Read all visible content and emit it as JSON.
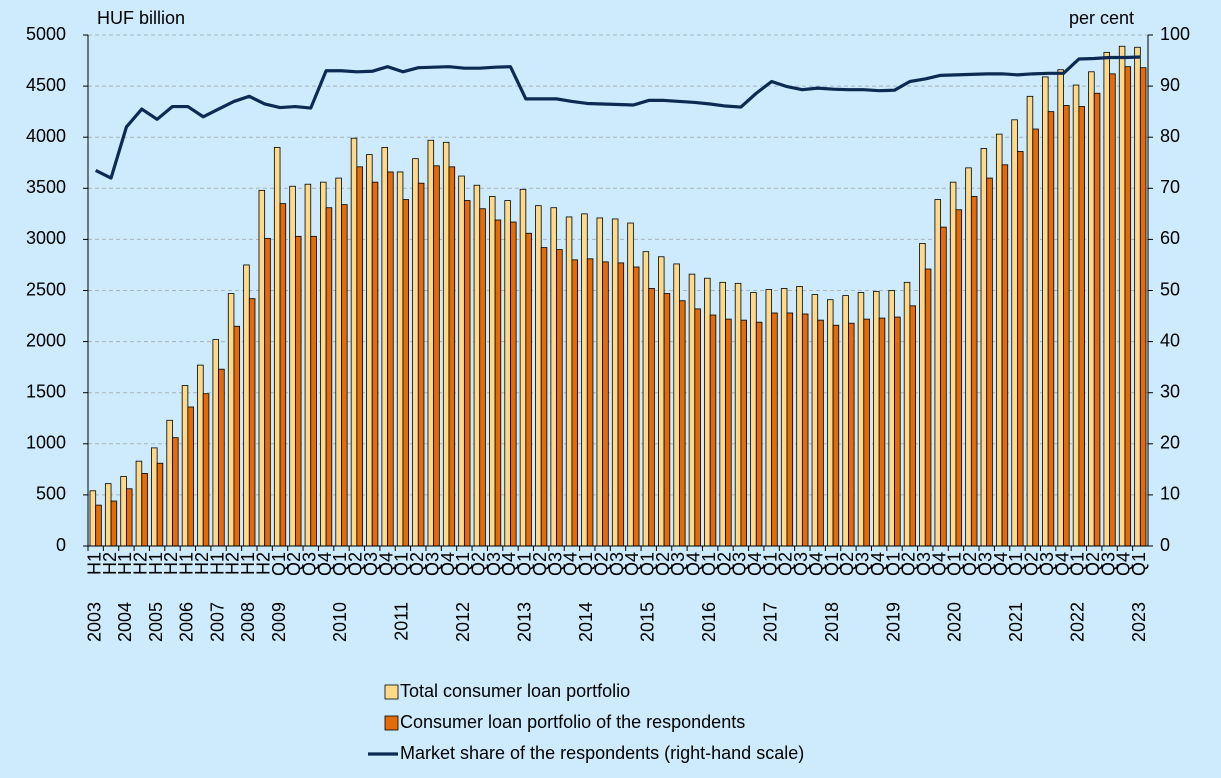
{
  "chart_data": {
    "type": "bar",
    "y_axis_label": "HUF billion",
    "y2_axis_label": "per cent",
    "categories": [
      "H1",
      "H2",
      "H1",
      "H2",
      "H1",
      "H2",
      "H1",
      "H2",
      "H1",
      "H2",
      "H1",
      "H2",
      "Q1",
      "Q2",
      "Q3",
      "Q4",
      "Q1",
      "Q2",
      "Q3",
      "Q4",
      "Q1",
      "Q2",
      "Q3",
      "Q4",
      "Q1",
      "Q2",
      "Q3",
      "Q4",
      "Q1",
      "Q2",
      "Q3",
      "Q4",
      "Q1",
      "Q2",
      "Q3",
      "Q4",
      "Q1",
      "Q2",
      "Q3",
      "Q4",
      "Q1",
      "Q2",
      "Q3",
      "Q4",
      "Q1",
      "Q2",
      "Q3",
      "Q4",
      "Q1",
      "Q2",
      "Q3",
      "Q4",
      "Q1",
      "Q2",
      "Q3",
      "Q4",
      "Q1",
      "Q2",
      "Q3",
      "Q4",
      "Q1",
      "Q2",
      "Q3",
      "Q4",
      "Q1",
      "Q2",
      "Q3",
      "Q4",
      "Q1"
    ],
    "category_groups": [
      {
        "label": "2003",
        "count": 2
      },
      {
        "label": "2004",
        "count": 2
      },
      {
        "label": "2005",
        "count": 2
      },
      {
        "label": "2006",
        "count": 2
      },
      {
        "label": "2007",
        "count": 2
      },
      {
        "label": "2008",
        "count": 2
      },
      {
        "label": "2009",
        "count": 4
      },
      {
        "label": "2010",
        "count": 4
      },
      {
        "label": "2011",
        "count": 4
      },
      {
        "label": "2012",
        "count": 4
      },
      {
        "label": "2013",
        "count": 4
      },
      {
        "label": "2014",
        "count": 4
      },
      {
        "label": "2015",
        "count": 4
      },
      {
        "label": "2016",
        "count": 4
      },
      {
        "label": "2017",
        "count": 4
      },
      {
        "label": "2018",
        "count": 4
      },
      {
        "label": "2019",
        "count": 4
      },
      {
        "label": "2020",
        "count": 4
      },
      {
        "label": "2021",
        "count": 4
      },
      {
        "label": "2022",
        "count": 4
      },
      {
        "label": "2023",
        "count": 1
      }
    ],
    "series": [
      {
        "name": "Total consumer loan portfolio",
        "type": "bar",
        "color": "#ffd98a",
        "values": [
          540,
          610,
          680,
          830,
          960,
          1230,
          1570,
          1770,
          2020,
          2470,
          2750,
          3480,
          3900,
          3520,
          3540,
          3560,
          3600,
          3990,
          3830,
          3900,
          3660,
          3790,
          3970,
          3950,
          3620,
          3530,
          3420,
          3380,
          3490,
          3330,
          3310,
          3220,
          3250,
          3210,
          3200,
          3160,
          2880,
          2830,
          2760,
          2660,
          2620,
          2580,
          2570,
          2480,
          2510,
          2520,
          2540,
          2460,
          2410,
          2450,
          2480,
          2490,
          2500,
          2580,
          2960,
          3390,
          3560,
          3700,
          3890,
          4030,
          4170,
          4400,
          4590,
          4660,
          4510,
          4640,
          4830,
          4890,
          4880
        ]
      },
      {
        "name": "Consumer loan portfolio of the respondents",
        "type": "bar",
        "color": "#e36c09",
        "values": [
          400,
          440,
          560,
          710,
          810,
          1060,
          1360,
          1490,
          1730,
          2150,
          2420,
          3010,
          3350,
          3030,
          3030,
          3310,
          3340,
          3710,
          3560,
          3660,
          3390,
          3550,
          3720,
          3710,
          3380,
          3300,
          3190,
          3170,
          3060,
          2920,
          2900,
          2800,
          2810,
          2780,
          2770,
          2730,
          2520,
          2470,
          2400,
          2320,
          2260,
          2220,
          2210,
          2190,
          2280,
          2280,
          2270,
          2210,
          2160,
          2180,
          2220,
          2230,
          2240,
          2350,
          2710,
          3120,
          3290,
          3420,
          3600,
          3730,
          3860,
          4080,
          4250,
          4310,
          4300,
          4430,
          4620,
          4690,
          4680
        ]
      },
      {
        "name": "Market share of the respondents (right-hand scale)",
        "type": "line",
        "axis": "y2",
        "color": "#0d2b52",
        "values": [
          73.5,
          72,
          82,
          85.5,
          83.5,
          86,
          86,
          84,
          85.5,
          87,
          88,
          86.5,
          85.8,
          86,
          85.7,
          93,
          93,
          92.8,
          92.9,
          93.8,
          92.8,
          93.6,
          93.7,
          93.8,
          93.5,
          93.5,
          93.7,
          93.8,
          87.5,
          87.5,
          87.5,
          87,
          86.6,
          86.5,
          86.4,
          86.3,
          87.2,
          87.2,
          87,
          86.8,
          86.5,
          86.1,
          85.9,
          88.6,
          90.9,
          89.9,
          89.3,
          89.6,
          89.4,
          89.3,
          89.3,
          89.1,
          89.2,
          90.9,
          91.4,
          92.1,
          92.2,
          92.3,
          92.4,
          92.4,
          92.2,
          92.4,
          92.5,
          92.5,
          95.3,
          95.4,
          95.6,
          95.6,
          95.7
        ]
      }
    ],
    "ylim": [
      0,
      5000
    ],
    "yticks": [
      0,
      500,
      1000,
      1500,
      2000,
      2500,
      3000,
      3500,
      4000,
      4500,
      5000
    ],
    "y2lim": [
      0,
      100
    ],
    "y2ticks": [
      0,
      10,
      20,
      30,
      40,
      50,
      60,
      70,
      80,
      90,
      100
    ],
    "grid": true,
    "legend": "bottom"
  }
}
